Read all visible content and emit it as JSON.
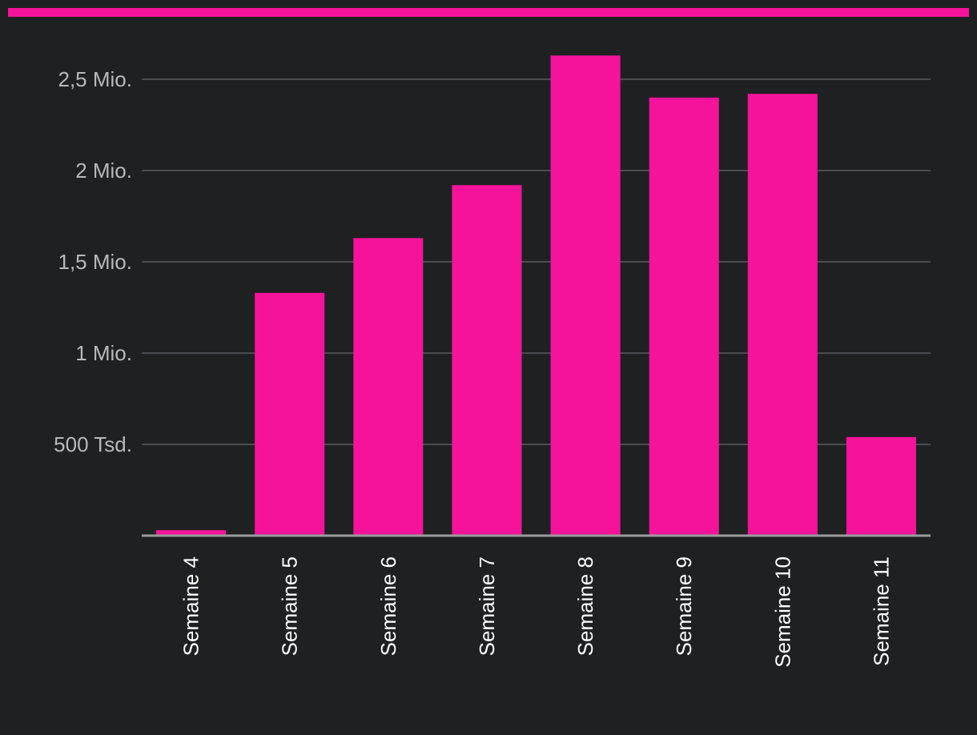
{
  "colors": {
    "background": "#1f2022",
    "accent": "#f5139b",
    "grid": "#5a5b5e",
    "axis": "#9a9a9a",
    "ytick_text": "#b9b9b9",
    "xtick_text": "#ffffff"
  },
  "chart_data": {
    "type": "bar",
    "title": "",
    "xlabel": "",
    "ylabel": "",
    "categories": [
      "Semaine 4",
      "Semaine 5",
      "Semaine 6",
      "Semaine 7",
      "Semaine 8",
      "Semaine 9",
      "Semaine 10",
      "Semaine 11"
    ],
    "values": [
      30000,
      1330000,
      1630000,
      1920000,
      2630000,
      2400000,
      2420000,
      540000
    ],
    "ylim": [
      0,
      2500000
    ],
    "yticks": [
      500000,
      1000000,
      1500000,
      2000000,
      2500000
    ],
    "ytick_labels": [
      "500 Tsd.",
      "1 Mio.",
      "1,5 Mio.",
      "2 Mio.",
      "2,5 Mio."
    ],
    "grid": true,
    "legend": "none",
    "x_tick_rotation": "vertical"
  }
}
